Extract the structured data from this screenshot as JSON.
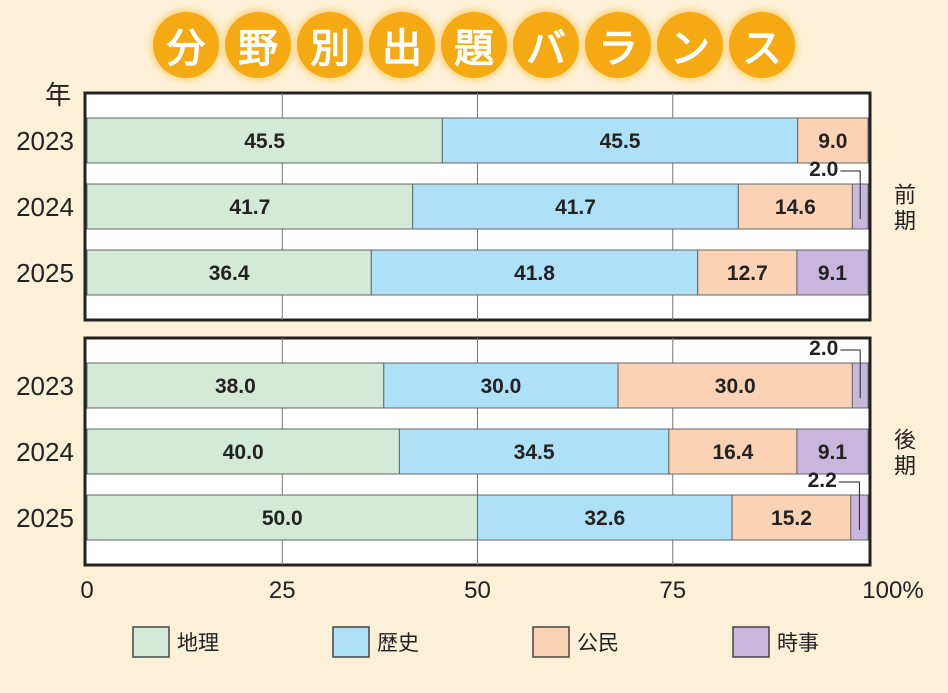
{
  "title": "分野別出題バランス",
  "chart_data": {
    "type": "bar",
    "stacked": true,
    "orientation": "horizontal",
    "title": "分野別出題バランス",
    "ylabel": "年",
    "xlabel": "",
    "xlim": [
      0,
      100
    ],
    "xticks": [
      "0",
      "25",
      "50",
      "75",
      "100%"
    ],
    "series_names": [
      "地理",
      "歴史",
      "公民",
      "時事"
    ],
    "colors": [
      "#d3ead8",
      "#aee0f8",
      "#fbd2b4",
      "#c8b6dc"
    ],
    "groups": [
      {
        "name": "前期",
        "rows": [
          {
            "year": "2023",
            "values": [
              45.5,
              45.5,
              9.0,
              0
            ]
          },
          {
            "year": "2024",
            "values": [
              41.7,
              41.7,
              14.6,
              2.0
            ]
          },
          {
            "year": "2025",
            "values": [
              36.4,
              41.8,
              12.7,
              9.1
            ]
          }
        ]
      },
      {
        "name": "後期",
        "rows": [
          {
            "year": "2023",
            "values": [
              38.0,
              30.0,
              30.0,
              2.0
            ]
          },
          {
            "year": "2024",
            "values": [
              40.0,
              34.5,
              16.4,
              9.1
            ]
          },
          {
            "year": "2025",
            "values": [
              50.0,
              32.6,
              15.2,
              2.2
            ]
          }
        ]
      }
    ]
  }
}
